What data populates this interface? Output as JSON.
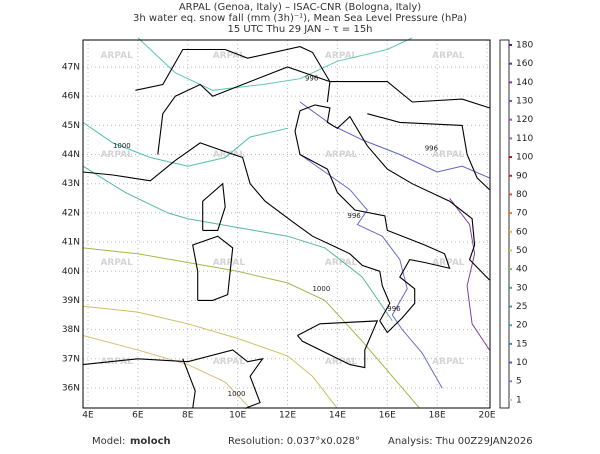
{
  "header": {
    "line1": "ARPAL (Genoa, Italy)  –  ISAC-CNR (Bologna, Italy)",
    "line2": "3h water eq. snow fall (mm (3h)⁻¹), Mean Sea Level Pressure (hPa)",
    "line3": "15 UTC Thu 29 JAN  –  τ = 15h"
  },
  "map": {
    "lon_ticks": [
      "4E",
      "6E",
      "8E",
      "10E",
      "12E",
      "14E",
      "16E",
      "18E",
      "20E"
    ],
    "lat_ticks": [
      "47N",
      "46N",
      "45N",
      "44N",
      "43N",
      "42N",
      "41N",
      "40N",
      "39N",
      "38N",
      "37N",
      "36N"
    ],
    "watermark": "ARPAL",
    "isobar_labels": [
      "996",
      "1000",
      "996",
      "996",
      "1000",
      "996",
      "1000"
    ]
  },
  "colorbar": {
    "labels": [
      180,
      160,
      140,
      130,
      120,
      110,
      100,
      90,
      80,
      70,
      60,
      50,
      40,
      30,
      25,
      20,
      15,
      10,
      5,
      1
    ]
  },
  "footer": {
    "model_label": "Model:",
    "model": "moloch",
    "resolution": "Resolution: 0.037°x0.028°",
    "analysis": "Analysis: Thu 00Z29JAN2026"
  }
}
